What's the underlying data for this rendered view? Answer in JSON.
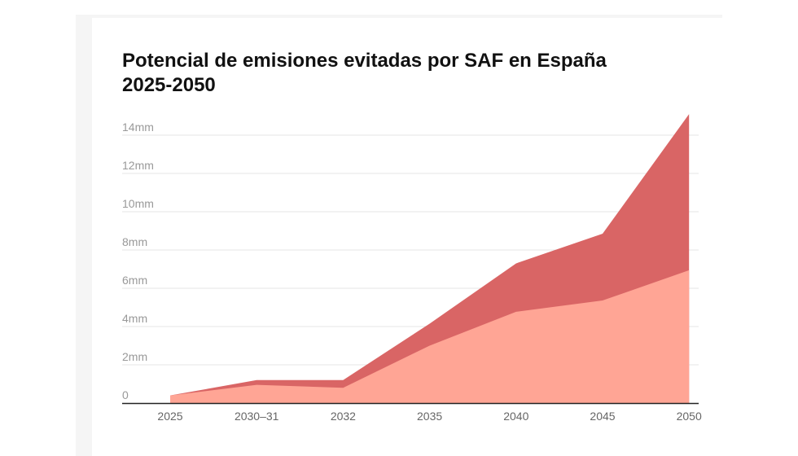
{
  "chart_data": {
    "type": "area",
    "title": "Potencial de emisiones evitadas por SAF en España 2025-2050",
    "title_lines": [
      "Potencial de emisiones evitadas por SAF en España",
      "2025-2050"
    ],
    "categories": [
      "2025",
      "2030–31",
      "2032",
      "2035",
      "2040",
      "2045",
      "2050"
    ],
    "series": [
      {
        "values": [
          0.4,
          1.2,
          1.2,
          4.15,
          7.3,
          8.85,
          15.1
        ],
        "color": "#d96565"
      },
      {
        "values": [
          0.4,
          0.95,
          0.8,
          3.0,
          4.77,
          5.36,
          6.94
        ],
        "color": "#ffa595"
      }
    ],
    "ylim": [
      0,
      14
    ],
    "yticks": [
      0,
      2,
      4,
      6,
      8,
      10,
      12,
      14
    ],
    "ytick_labels": [
      "0",
      "2mm",
      "4mm",
      "6mm",
      "8mm",
      "10mm",
      "12mm",
      "14mm"
    ],
    "xlabel": "",
    "ylabel": "",
    "grid": true,
    "legend": "none"
  }
}
